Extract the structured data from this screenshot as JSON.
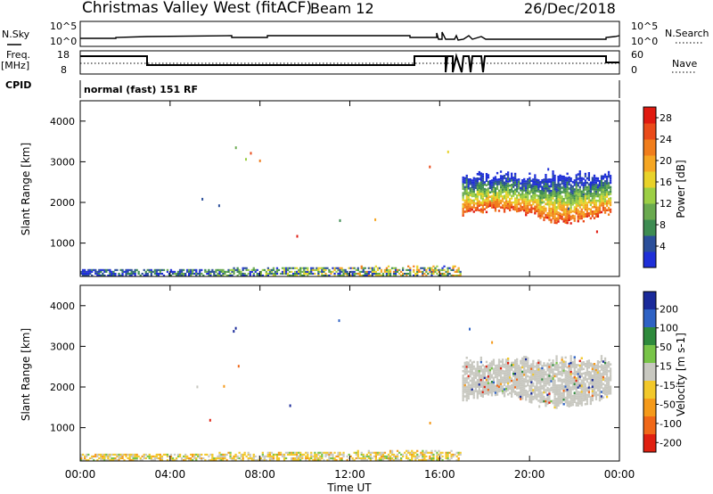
{
  "header": {
    "station": "Christmas Valley West (fitACF)",
    "beam": "Beam 12",
    "date": "26/Dec/2018"
  },
  "params": {
    "nsky_label": "N.Sky",
    "nsky_ticks": [
      "10^5",
      "10^0"
    ],
    "nsearch_label": "N.Search",
    "nsearch_ticks": [
      "10^5",
      "10^0"
    ],
    "freq_label": "Freq.",
    "freq_unit": "[MHz]",
    "freq_ticks": [
      "18",
      "8"
    ],
    "nave_label": "Nave",
    "nave_ticks": [
      "60",
      "0"
    ],
    "cpid_label": "CPID",
    "cpid_value": "normal (fast) 151 RF"
  },
  "chart_data": [
    {
      "type": "heatmap",
      "name": "power-panel",
      "ylabel": "Slant Range [km]",
      "xlabel": "",
      "xlim": [
        0,
        24
      ],
      "ylim": [
        180,
        4500
      ],
      "yticks": [
        1000,
        2000,
        3000,
        4000
      ],
      "ytick_labels": [
        "1000",
        "2000",
        "3000",
        "4000"
      ],
      "colorbar": {
        "label": "Power [dB]",
        "tick_labels": [
          "4",
          "8",
          "12",
          "16",
          "20",
          "24",
          "28"
        ],
        "colors": [
          "#1f2fd8",
          "#2b4f9a",
          "#3e8c52",
          "#6aaa4f",
          "#9ccf45",
          "#e8d22a",
          "#f5a623",
          "#f07d1c",
          "#ea4b1a",
          "#e01a10"
        ]
      },
      "echo_regions": [
        {
          "t_start": 0.0,
          "t_end": 16.9,
          "range_min": 180,
          "range_max": 420,
          "note": "near-range ground scatter"
        },
        {
          "t_start": 17.0,
          "t_end": 23.6,
          "range_min": 1400,
          "range_max": 2900,
          "peak_power_db": 28
        }
      ]
    },
    {
      "type": "heatmap",
      "name": "velocity-panel",
      "ylabel": "Slant Range [km]",
      "xlabel": "Time UT",
      "xlim": [
        0,
        24
      ],
      "ylim": [
        180,
        4500
      ],
      "xticks": [
        0,
        4,
        8,
        12,
        16,
        20,
        24
      ],
      "xtick_labels": [
        "00:00",
        "04:00",
        "08:00",
        "12:00",
        "16:00",
        "20:00",
        "00:00"
      ],
      "yticks": [
        1000,
        2000,
        3000,
        4000
      ],
      "ytick_labels": [
        "1000",
        "2000",
        "3000",
        "4000"
      ],
      "colorbar": {
        "label": "Velocity [m s-1]",
        "tick_labels": [
          "200",
          "100",
          "50",
          "15",
          "-15",
          "-50",
          "-100",
          "-200"
        ],
        "colors": [
          "#1a2a9a",
          "#2e62c4",
          "#2e8a3c",
          "#78c448",
          "#c8c8c0",
          "#f2c82a",
          "#f59a1a",
          "#f06818",
          "#e02010"
        ]
      },
      "echo_regions": [
        {
          "t_start": 0.0,
          "t_end": 16.9,
          "range_min": 180,
          "range_max": 420,
          "velocity": "-15 to -50"
        },
        {
          "t_start": 17.0,
          "t_end": 23.6,
          "range_min": 1400,
          "range_max": 2900,
          "velocity": "-15 to 15 (ground scatter)"
        }
      ]
    }
  ]
}
